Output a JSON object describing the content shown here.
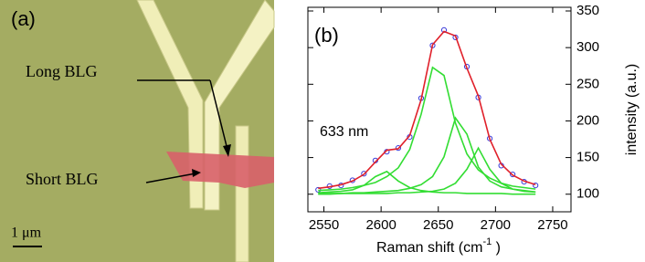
{
  "panel_a": {
    "label": "(a)",
    "long_label": "Long BLG",
    "short_label": "Short BLG",
    "scale_label": "1 μm"
  },
  "chart_data": {
    "type": "line",
    "panel_label": "(b)",
    "annotation": "633 nm",
    "xlabel": {
      "text": "Raman shift (cm",
      "superscript": "-1",
      "suffix": " )"
    },
    "ylabel": "intensity (a.u.)",
    "xlim": [
      2536,
      2766
    ],
    "ylim": [
      76,
      355
    ],
    "xticks": [
      2550,
      2600,
      2650,
      2700,
      2750
    ],
    "yticks": [
      100,
      150,
      200,
      250,
      300,
      350
    ],
    "x": [
      2545,
      2555,
      2565,
      2575,
      2585,
      2595,
      2605,
      2615,
      2625,
      2635,
      2645,
      2655,
      2665,
      2675,
      2685,
      2695,
      2705,
      2715,
      2725,
      2735
    ],
    "series": [
      {
        "style": "markers",
        "color": "#3a3ad8",
        "values": [
          106,
          111,
          112,
          119,
          128,
          146,
          158,
          163,
          178,
          231,
          303,
          324,
          314,
          274,
          232,
          176,
          139,
          127,
          117,
          112
        ]
      },
      {
        "style": "line",
        "color": "#33dd33",
        "values": [
          102,
          103,
          104,
          106,
          112,
          124,
          131,
          118,
          109,
          105,
          103,
          102,
          102,
          101,
          101,
          101,
          101,
          100,
          100,
          100
        ]
      },
      {
        "style": "line",
        "color": "#33dd33",
        "values": [
          105,
          106,
          107,
          109,
          112,
          116,
          124,
          136,
          161,
          209,
          273,
          262,
          197,
          155,
          133,
          122,
          115,
          111,
          109,
          107
        ]
      },
      {
        "style": "line",
        "color": "#33dd33",
        "values": [
          101,
          101,
          101,
          102,
          102,
          103,
          104,
          105,
          108,
          113,
          124,
          151,
          204,
          182,
          137,
          118,
          110,
          107,
          105,
          103
        ]
      },
      {
        "style": "line",
        "color": "#33dd33",
        "values": [
          100,
          100,
          101,
          101,
          101,
          101,
          101,
          102,
          102,
          103,
          104,
          107,
          115,
          134,
          163,
          134,
          115,
          107,
          104,
          103
        ]
      },
      {
        "style": "line",
        "color": "#e0202a",
        "values": [
          108,
          110,
          113,
          118,
          127,
          144,
          160,
          162,
          180,
          229,
          304,
          322,
          316,
          272,
          234,
          175,
          141,
          126,
          118,
          113
        ]
      }
    ]
  }
}
